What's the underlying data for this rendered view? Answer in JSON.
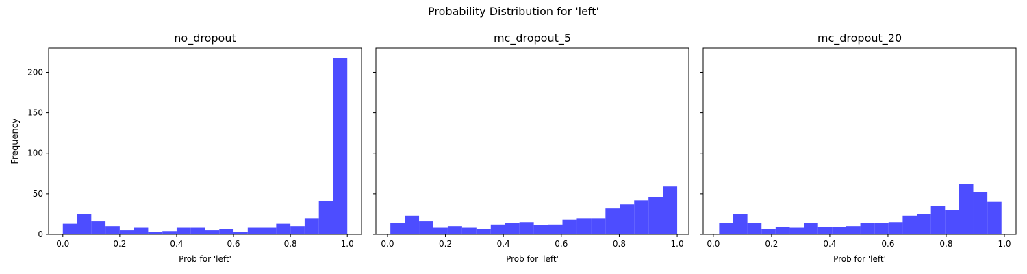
{
  "figure": {
    "suptitle": "Probability Distribution for 'left'"
  },
  "chart_data": [
    {
      "type": "bar",
      "title": "no_dropout",
      "xlabel": "Prob for 'left'",
      "ylabel": "Frequency",
      "xlim": [
        -0.05,
        1.05
      ],
      "ylim": [
        0,
        230
      ],
      "xticks": [
        0.0,
        0.2,
        0.4,
        0.6,
        0.8,
        1.0
      ],
      "xtick_labels": [
        "0.0",
        "0.2",
        "0.4",
        "0.6",
        "0.8",
        "1.0"
      ],
      "yticks": [
        0,
        50,
        100,
        150,
        200
      ],
      "ytick_labels": [
        "0",
        "50",
        "100",
        "150",
        "200"
      ],
      "show_ytick_labels": true,
      "bin_edges": [
        0.0,
        0.05,
        0.1,
        0.15,
        0.2,
        0.25,
        0.3,
        0.35,
        0.4,
        0.45,
        0.5,
        0.55,
        0.6,
        0.65,
        0.7,
        0.75,
        0.8,
        0.85,
        0.9,
        0.95,
        1.0
      ],
      "values": [
        13,
        25,
        16,
        10,
        5,
        8,
        3,
        4,
        8,
        8,
        5,
        6,
        3,
        8,
        8,
        13,
        10,
        20,
        41,
        218
      ],
      "color": "#4d4dff"
    },
    {
      "type": "bar",
      "title": "mc_dropout_5",
      "xlabel": "Prob for 'left'",
      "ylabel": "",
      "xlim": [
        -0.04,
        1.04
      ],
      "ylim": [
        0,
        230
      ],
      "xticks": [
        0.0,
        0.2,
        0.4,
        0.6,
        0.8,
        1.0
      ],
      "xtick_labels": [
        "0.0",
        "0.2",
        "0.4",
        "0.6",
        "0.8",
        "1.0"
      ],
      "yticks": [
        0,
        50,
        100,
        150,
        200
      ],
      "ytick_labels": [
        "0",
        "50",
        "100",
        "150",
        "200"
      ],
      "show_ytick_labels": false,
      "bin_edges": [
        0.01,
        0.0595,
        0.109,
        0.1585,
        0.208,
        0.2575,
        0.307,
        0.3565,
        0.406,
        0.4555,
        0.505,
        0.5545,
        0.604,
        0.6535,
        0.703,
        0.7525,
        0.802,
        0.8515,
        0.901,
        0.9505,
        1.0
      ],
      "values": [
        14,
        23,
        16,
        8,
        10,
        8,
        6,
        12,
        14,
        15,
        11,
        12,
        18,
        20,
        20,
        32,
        37,
        42,
        46,
        59
      ],
      "color": "#4d4dff"
    },
    {
      "type": "bar",
      "title": "mc_dropout_20",
      "xlabel": "Prob for 'left'",
      "ylabel": "",
      "xlim": [
        -0.035,
        1.04
      ],
      "ylim": [
        0,
        230
      ],
      "xticks": [
        0.0,
        0.2,
        0.4,
        0.6,
        0.8,
        1.0
      ],
      "xtick_labels": [
        "0.0",
        "0.2",
        "0.4",
        "0.6",
        "0.8",
        "1.0"
      ],
      "yticks": [
        0,
        50,
        100,
        150,
        200
      ],
      "ytick_labels": [
        "0",
        "50",
        "100",
        "150",
        "200"
      ],
      "show_ytick_labels": false,
      "bin_edges": [
        0.02,
        0.0685,
        0.117,
        0.1655,
        0.214,
        0.2625,
        0.311,
        0.3595,
        0.408,
        0.4565,
        0.505,
        0.5535,
        0.602,
        0.6505,
        0.699,
        0.7475,
        0.796,
        0.8445,
        0.893,
        0.9415,
        0.99
      ],
      "values": [
        14,
        25,
        14,
        6,
        9,
        8,
        14,
        9,
        9,
        10,
        14,
        14,
        15,
        23,
        25,
        35,
        30,
        62,
        52,
        40
      ],
      "color": "#4d4dff"
    }
  ]
}
